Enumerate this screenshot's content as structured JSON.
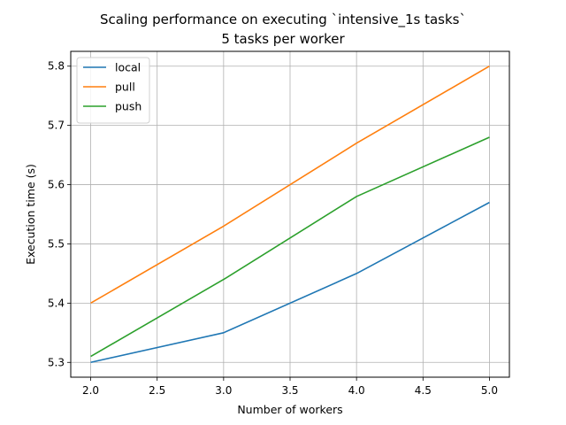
{
  "chart_data": {
    "type": "line",
    "title": "Scaling performance on executing `intensive_1s tasks`",
    "subtitle": "5 tasks per worker",
    "xlabel": "Number of workers",
    "ylabel": "Execution time (s)",
    "xlim": [
      1.85,
      5.15
    ],
    "ylim": [
      5.275,
      5.825
    ],
    "xticks": [
      2.0,
      2.5,
      3.0,
      3.5,
      4.0,
      4.5,
      5.0
    ],
    "yticks": [
      5.3,
      5.4,
      5.5,
      5.6,
      5.7,
      5.8
    ],
    "grid": true,
    "legend_position": "top-left",
    "x": [
      2,
      3,
      4,
      5
    ],
    "series": [
      {
        "name": "local",
        "color": "#1f77b4",
        "values": [
          5.3,
          5.35,
          5.45,
          5.57
        ]
      },
      {
        "name": "pull",
        "color": "#ff7f0e",
        "values": [
          5.4,
          5.53,
          5.67,
          5.8
        ]
      },
      {
        "name": "push",
        "color": "#2ca02c",
        "values": [
          5.31,
          5.44,
          5.58,
          5.68
        ]
      }
    ]
  }
}
